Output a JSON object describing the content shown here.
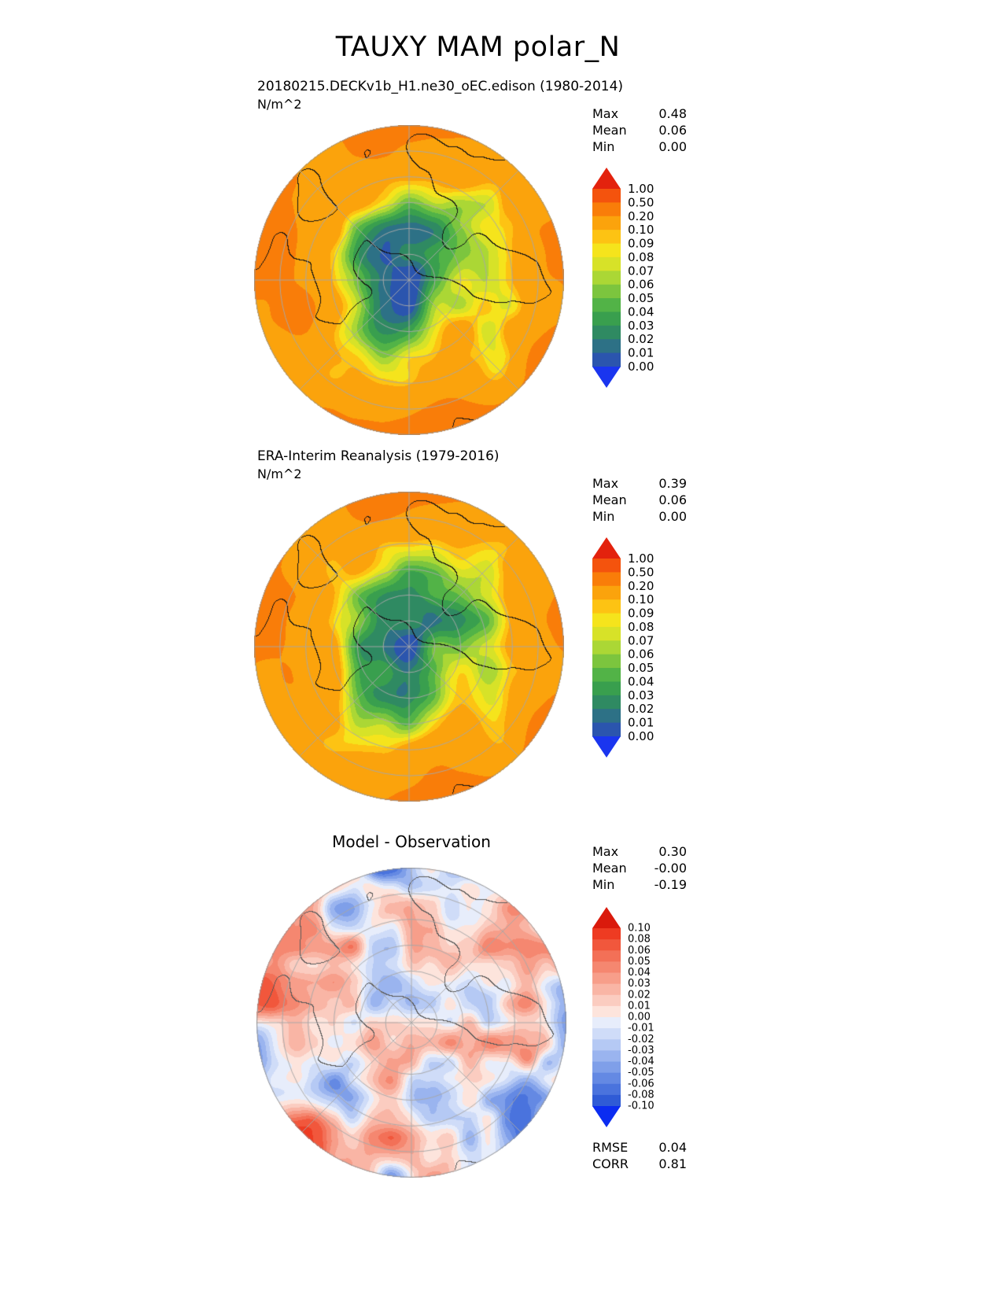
{
  "page": {
    "title": "TAUXY MAM polar_N"
  },
  "chart_data": [
    {
      "type": "heatmap",
      "title": "20180215.DECKv1b_H1.ne30_oEC.edison (1980-2014)",
      "units": "N/m^2",
      "stats": [
        {
          "label": "Max",
          "value": "0.48"
        },
        {
          "label": "Mean",
          "value": "0.06"
        },
        {
          "label": "Min",
          "value": "0.00"
        }
      ],
      "colorbar": {
        "tick_labels": [
          "1.00",
          "0.50",
          "0.20",
          "0.10",
          "0.09",
          "0.08",
          "0.07",
          "0.06",
          "0.05",
          "0.04",
          "0.03",
          "0.02",
          "0.01",
          "0.00"
        ],
        "segment_colors_top_to_bottom": [
          "#f4530d",
          "#f97d09",
          "#fba30c",
          "#fdc313",
          "#f5e41c",
          "#d7e228",
          "#abd735",
          "#7cc53e",
          "#52b347",
          "#399f4e",
          "#2f8a62",
          "#2d7186",
          "#2b55ae"
        ],
        "over_arrow_color": "#e3220d",
        "under_arrow_color": "#1a35ef"
      }
    },
    {
      "type": "heatmap",
      "title": "ERA-Interim Reanalysis (1979-2016)",
      "units": "N/m^2",
      "stats": [
        {
          "label": "Max",
          "value": "0.39"
        },
        {
          "label": "Mean",
          "value": "0.06"
        },
        {
          "label": "Min",
          "value": "0.00"
        }
      ],
      "colorbar": {
        "tick_labels": [
          "1.00",
          "0.50",
          "0.20",
          "0.10",
          "0.09",
          "0.08",
          "0.07",
          "0.06",
          "0.05",
          "0.04",
          "0.03",
          "0.02",
          "0.01",
          "0.00"
        ],
        "segment_colors_top_to_bottom": [
          "#f4530d",
          "#f97d09",
          "#fba30c",
          "#fdc313",
          "#f5e41c",
          "#d7e228",
          "#abd735",
          "#7cc53e",
          "#52b347",
          "#399f4e",
          "#2f8a62",
          "#2d7186",
          "#2b55ae"
        ],
        "over_arrow_color": "#e3220d",
        "under_arrow_color": "#1a35ef"
      }
    },
    {
      "type": "heatmap",
      "title": "Model - Observation",
      "units": "",
      "stats": [
        {
          "label": "Max",
          "value": "0.30"
        },
        {
          "label": "Mean",
          "value": "-0.00"
        },
        {
          "label": "Min",
          "value": "-0.19"
        }
      ],
      "colorbar": {
        "tick_labels": [
          "0.10",
          "0.08",
          "0.06",
          "0.05",
          "0.04",
          "0.03",
          "0.02",
          "0.01",
          "0.00",
          "-0.01",
          "-0.02",
          "-0.03",
          "-0.04",
          "-0.05",
          "-0.06",
          "-0.08",
          "-0.10"
        ],
        "segment_colors_top_to_bottom": [
          "#ee3b22",
          "#f1573c",
          "#f37057",
          "#f58770",
          "#f79e8a",
          "#f9b5a5",
          "#fbccc0",
          "#fde4dc",
          "#e7edfb",
          "#cfdcf8",
          "#b5c9f4",
          "#9ab4ef",
          "#7f9fe9",
          "#6489e3",
          "#4a73dd",
          "#2f5bd6"
        ],
        "over_arrow_color": "#da1a0c",
        "under_arrow_color": "#0b2cf1"
      },
      "summary_stats": [
        {
          "label": "RMSE",
          "value": "0.04"
        },
        {
          "label": "CORR",
          "value": "0.81"
        }
      ]
    }
  ]
}
